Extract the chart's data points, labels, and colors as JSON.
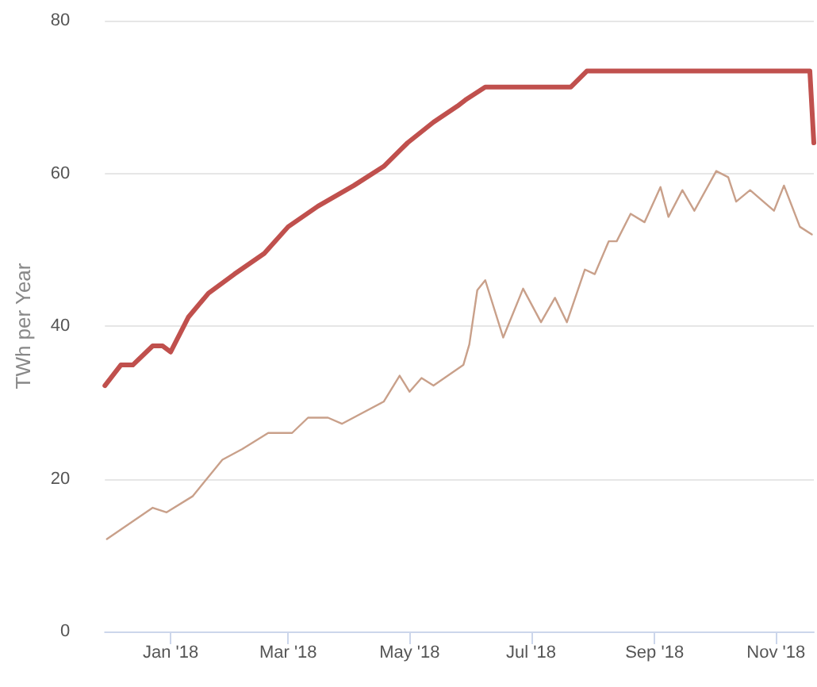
{
  "chart_data": {
    "type": "line",
    "ylabel": "TWh per Year",
    "xlim": [
      "2017-11-29",
      "2018-11-20"
    ],
    "xticks": [
      {
        "value": "2018-01-01",
        "label": "Jan '18"
      },
      {
        "value": "2018-03-01",
        "label": "Mar '18"
      },
      {
        "value": "2018-05-01",
        "label": "May '18"
      },
      {
        "value": "2018-07-01",
        "label": "Jul '18"
      },
      {
        "value": "2018-09-01",
        "label": "Sep '18"
      },
      {
        "value": "2018-11-01",
        "label": "Nov '18"
      }
    ],
    "ylim": [
      0,
      80
    ],
    "yticks": [
      0,
      20,
      40,
      60,
      80
    ],
    "grid": "y",
    "marker": "none",
    "series": [
      {
        "color": "#c0504d",
        "x": [
          "2017-11-29",
          "2017-12-07",
          "2017-12-13",
          "2017-12-23",
          "2017-12-28",
          "2018-01-01",
          "2018-01-10",
          "2018-01-20",
          "2018-02-02",
          "2018-02-17",
          "2018-03-01",
          "2018-03-16",
          "2018-04-03",
          "2018-04-18",
          "2018-04-30",
          "2018-05-13",
          "2018-05-25",
          "2018-05-29",
          "2018-06-08",
          "2018-07-21",
          "2018-07-29",
          "2018-11-18",
          "2018-11-20"
        ],
        "values": [
          32.2,
          34.9,
          34.9,
          37.4,
          37.4,
          36.6,
          41.2,
          44.3,
          46.8,
          49.5,
          53,
          55.7,
          58.4,
          60.9,
          64,
          66.7,
          68.8,
          69.6,
          71.3,
          71.3,
          73.4,
          73.4,
          64
        ]
      },
      {
        "color": "#c9a08a",
        "x": [
          "2017-11-30",
          "2017-12-23",
          "2017-12-30",
          "2018-01-12",
          "2018-01-27",
          "2018-02-06",
          "2018-02-19",
          "2018-03-03",
          "2018-03-11",
          "2018-03-21",
          "2018-03-28",
          "2018-04-18",
          "2018-04-26",
          "2018-05-01",
          "2018-05-07",
          "2018-05-13",
          "2018-05-28",
          "2018-05-31",
          "2018-06-04",
          "2018-06-08",
          "2018-06-17",
          "2018-06-27",
          "2018-07-06",
          "2018-07-13",
          "2018-07-19",
          "2018-07-28",
          "2018-08-02",
          "2018-08-09",
          "2018-08-13",
          "2018-08-20",
          "2018-08-27",
          "2018-09-04",
          "2018-09-08",
          "2018-09-15",
          "2018-09-21",
          "2018-10-02",
          "2018-10-08",
          "2018-10-12",
          "2018-10-19",
          "2018-10-31",
          "2018-11-05",
          "2018-11-13",
          "2018-11-19"
        ],
        "values": [
          12.1,
          16.2,
          15.6,
          17.7,
          22.5,
          23.9,
          26,
          26,
          28,
          28,
          27.2,
          30.1,
          33.5,
          31.4,
          33.2,
          32.2,
          34.9,
          37.6,
          44.7,
          46,
          38.5,
          44.9,
          40.5,
          43.7,
          40.5,
          47.4,
          46.8,
          51.1,
          51.1,
          54.7,
          53.6,
          58.2,
          54.3,
          57.8,
          55.1,
          60.3,
          59.5,
          56.3,
          57.8,
          55.1,
          58.4,
          53,
          52
        ]
      }
    ]
  }
}
